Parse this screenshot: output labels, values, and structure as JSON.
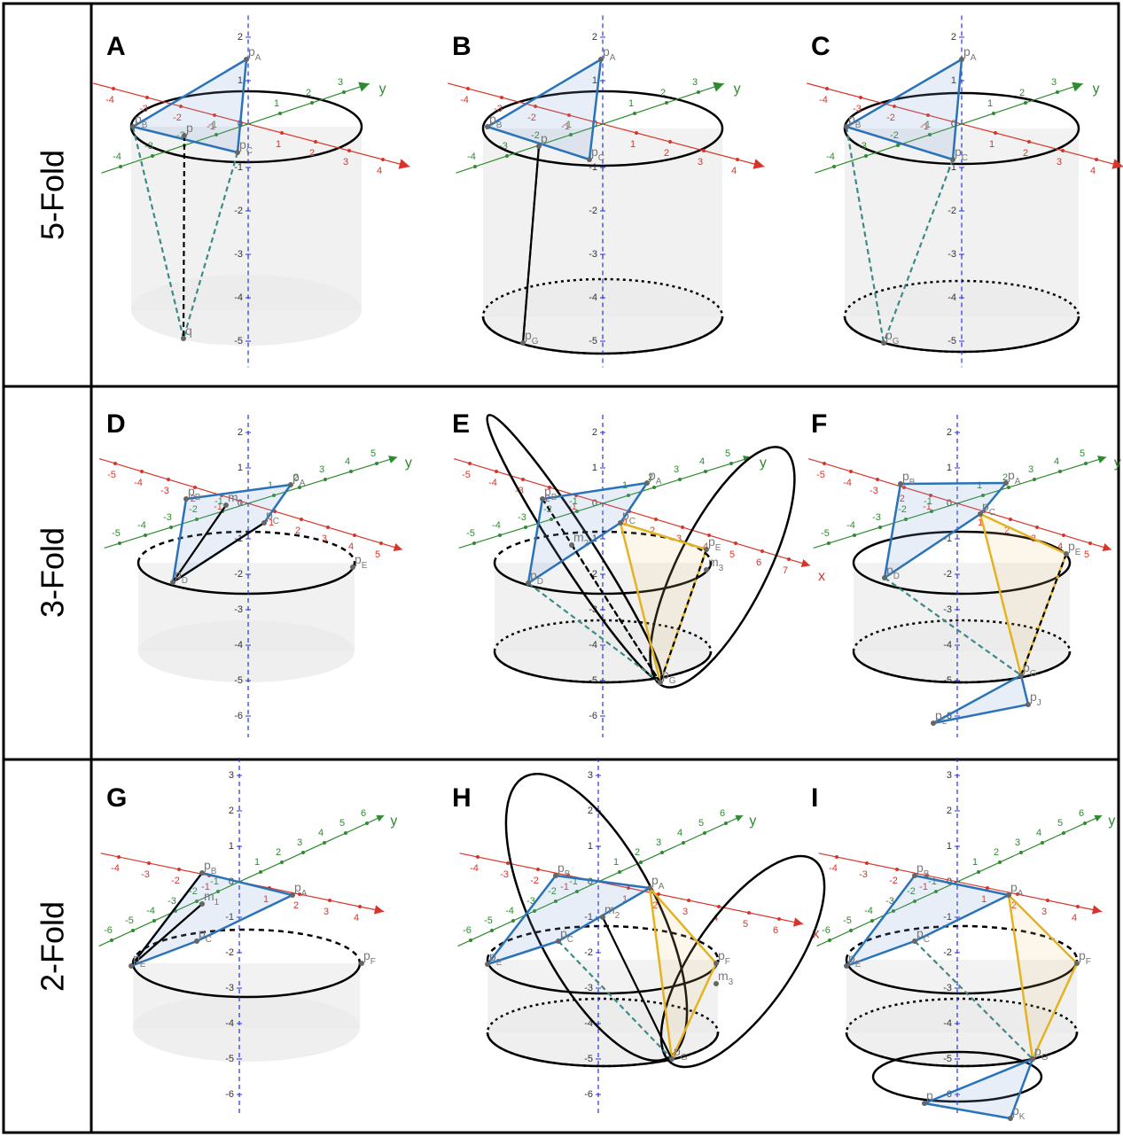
{
  "rows": [
    {
      "label": "5-Fold",
      "panels": [
        {
          "letter": "A",
          "z_ticks": [
            2,
            1,
            0,
            -1,
            -2,
            -3,
            -4,
            -5
          ],
          "x_ticks": [
            -4,
            -3,
            -2,
            -1,
            1,
            2,
            3,
            4
          ],
          "y_ticks": [
            -4,
            -3,
            -2,
            -1,
            1,
            2,
            3
          ],
          "y_label": "y",
          "points": [
            {
              "label": "p",
              "sub": "A"
            },
            {
              "label": "p",
              "sub": "B"
            },
            {
              "label": "p",
              "sub": "C"
            },
            {
              "label": "p"
            },
            {
              "label": "q"
            }
          ]
        },
        {
          "letter": "B",
          "z_ticks": [
            2,
            1,
            0,
            -1,
            -2,
            -3,
            -4,
            -5
          ],
          "x_ticks": [
            -4,
            -3,
            -2,
            -1,
            1,
            2,
            3,
            4
          ],
          "y_ticks": [
            -4,
            -3,
            -2,
            -1,
            1,
            2,
            3
          ],
          "y_label": "y",
          "points": [
            {
              "label": "p",
              "sub": "A"
            },
            {
              "label": "p",
              "sub": "B"
            },
            {
              "label": "p",
              "sub": "C"
            },
            {
              "label": "p"
            },
            {
              "label": "p",
              "sub": "G"
            }
          ]
        },
        {
          "letter": "C",
          "z_ticks": [
            2,
            1,
            0,
            -1,
            -2,
            -3,
            -4,
            -5
          ],
          "x_ticks": [
            -4,
            -3,
            -2,
            -1,
            1,
            2,
            3,
            4
          ],
          "y_ticks": [
            -4,
            -3,
            -2,
            -1,
            1,
            2,
            3
          ],
          "y_label": "y",
          "points": [
            {
              "label": "p",
              "sub": "A"
            },
            {
              "label": "p",
              "sub": "B"
            },
            {
              "label": "p",
              "sub": "C"
            },
            {
              "label": "p",
              "sub": "G"
            }
          ]
        }
      ]
    },
    {
      "label": "3-Fold",
      "panels": [
        {
          "letter": "D",
          "z_ticks": [
            2,
            1,
            0,
            -1,
            -2,
            -3,
            -4,
            -5,
            -6
          ],
          "x_ticks": [
            -5,
            -4,
            -3,
            -2,
            -1,
            1,
            2,
            3,
            4,
            5
          ],
          "y_ticks": [
            -5,
            -4,
            -3,
            -2,
            -1,
            1,
            2,
            3,
            4,
            5
          ],
          "y_label": "y",
          "points": [
            {
              "label": "p",
              "sub": "A"
            },
            {
              "label": "p",
              "sub": "B"
            },
            {
              "label": "p",
              "sub": "C"
            },
            {
              "label": "m",
              "sub": "1"
            },
            {
              "label": "p",
              "sub": "E"
            },
            {
              "label": "p",
              "sub": "D"
            }
          ]
        },
        {
          "letter": "E",
          "z_ticks": [
            2,
            1,
            0,
            -1,
            -2,
            -3,
            -4,
            -5,
            -6
          ],
          "x_ticks": [
            -5,
            -4,
            -3,
            -2,
            -1,
            1,
            2,
            3,
            4,
            5,
            6,
            7
          ],
          "y_ticks": [
            -5,
            -4,
            -3,
            -2,
            -1,
            1,
            2,
            3,
            4,
            5
          ],
          "x_label": "x",
          "y_label": "y",
          "points": [
            {
              "label": "p",
              "sub": "A"
            },
            {
              "label": "p",
              "sub": "B"
            },
            {
              "label": "p",
              "sub": "C"
            },
            {
              "label": "m",
              "sub": "2"
            },
            {
              "label": "p",
              "sub": "E"
            },
            {
              "label": "m",
              "sub": "3"
            },
            {
              "label": "p",
              "sub": "D"
            },
            {
              "label": "p",
              "sub": "G"
            }
          ]
        },
        {
          "letter": "F",
          "z_ticks": [
            2,
            1,
            0,
            -1,
            -2,
            -3,
            -4,
            -5,
            -6
          ],
          "x_ticks": [
            -5,
            -4,
            -3,
            -2,
            -1,
            1,
            2,
            3,
            4,
            5
          ],
          "y_ticks": [
            -5,
            -4,
            -3,
            -2,
            -1,
            1,
            2,
            3,
            4,
            5
          ],
          "y_label": "y",
          "points": [
            {
              "label": "p",
              "sub": "A"
            },
            {
              "label": "p",
              "sub": "B"
            },
            {
              "label": "p",
              "sub": "C"
            },
            {
              "label": "p",
              "sub": "E"
            },
            {
              "label": "p",
              "sub": "D"
            },
            {
              "label": "p",
              "sub": "G"
            },
            {
              "label": "p",
              "sub": "J"
            },
            {
              "label": "p",
              "sub": "L"
            }
          ]
        }
      ]
    },
    {
      "label": "2-Fold",
      "panels": [
        {
          "letter": "G",
          "z_ticks": [
            3,
            2,
            1,
            0,
            -1,
            -2,
            -3,
            -4,
            -5,
            -6
          ],
          "x_ticks": [
            -4,
            -3,
            -2,
            -1,
            1,
            2,
            3,
            4
          ],
          "y_ticks": [
            -6,
            -5,
            -4,
            -3,
            -2,
            -1,
            1,
            2,
            3,
            4,
            5,
            6
          ],
          "y_label": "y",
          "points": [
            {
              "label": "p",
              "sub": "A"
            },
            {
              "label": "p",
              "sub": "B"
            },
            {
              "label": "p",
              "sub": "C"
            },
            {
              "label": "m",
              "sub": "1"
            },
            {
              "label": "p",
              "sub": "E"
            },
            {
              "label": "p",
              "sub": "F"
            }
          ]
        },
        {
          "letter": "H",
          "z_ticks": [
            3,
            2,
            1,
            0,
            -1,
            -2,
            -3,
            -4,
            -5,
            -6
          ],
          "x_ticks": [
            -4,
            -3,
            -2,
            -1,
            1,
            2,
            3,
            4,
            5,
            6
          ],
          "y_ticks": [
            -6,
            -5,
            -4,
            -3,
            -2,
            -1,
            1,
            2,
            3,
            4,
            5,
            6
          ],
          "x_label": "x",
          "y_label": "y",
          "points": [
            {
              "label": "p",
              "sub": "A"
            },
            {
              "label": "p",
              "sub": "B"
            },
            {
              "label": "p",
              "sub": "C"
            },
            {
              "label": "m",
              "sub": "2"
            },
            {
              "label": "p",
              "sub": "E"
            },
            {
              "label": "p",
              "sub": "F"
            },
            {
              "label": "m",
              "sub": "3"
            },
            {
              "label": "p",
              "sub": "G"
            }
          ]
        },
        {
          "letter": "I",
          "z_ticks": [
            3,
            2,
            1,
            0,
            -1,
            -2,
            -3,
            -4,
            -5,
            -6
          ],
          "x_ticks": [
            -4,
            -3,
            -2,
            -1,
            1,
            2,
            3,
            4
          ],
          "y_ticks": [
            -6,
            -5,
            -4,
            -3,
            -2,
            -1,
            1,
            2,
            3,
            4,
            5,
            6
          ],
          "y_label": "y",
          "points": [
            {
              "label": "p",
              "sub": "A"
            },
            {
              "label": "p",
              "sub": "B"
            },
            {
              "label": "p",
              "sub": "C"
            },
            {
              "label": "p",
              "sub": "E"
            },
            {
              "label": "p",
              "sub": "F"
            },
            {
              "label": "p",
              "sub": "G"
            },
            {
              "label": "p",
              "sub": "K"
            },
            {
              "label": "p"
            }
          ]
        }
      ]
    }
  ]
}
